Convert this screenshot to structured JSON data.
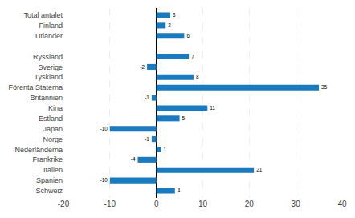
{
  "chart_data": {
    "type": "bar",
    "orientation": "horizontal",
    "categories": [
      "Schweiz",
      "Spanien",
      "Italien",
      "Frankrike",
      "Nederländerna",
      "Norge",
      "Japan",
      "Estland",
      "Kina",
      "Britannien",
      "Förenta Staterna",
      "Tyskland",
      "Sverige",
      "Ryssland",
      null,
      "Utländer",
      "Finland",
      "Total antalet"
    ],
    "values": [
      4,
      -10,
      21,
      -4,
      1,
      -1,
      -10,
      5,
      11,
      -1,
      35,
      8,
      -2,
      7,
      null,
      6,
      2,
      3
    ],
    "color": "#1a7abf",
    "xlim": [
      -20,
      40
    ],
    "xticks": [
      -20,
      -10,
      0,
      10,
      20,
      30,
      40
    ],
    "grid": true,
    "data_labels": true
  }
}
